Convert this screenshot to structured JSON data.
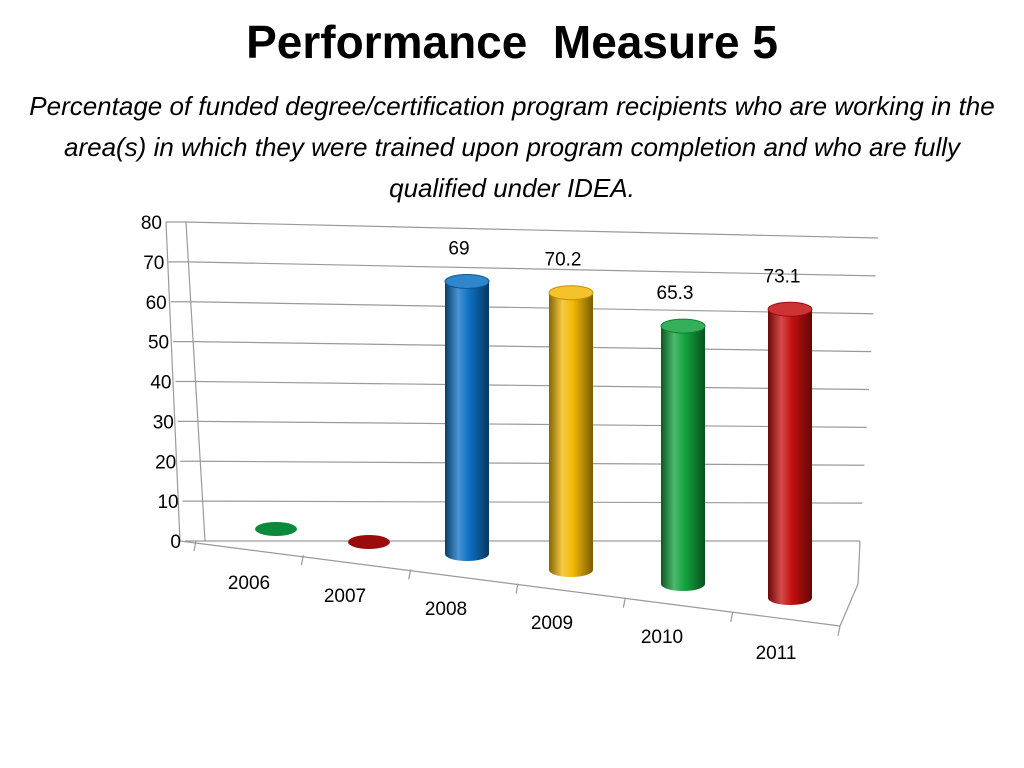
{
  "title": "Performance  Measure 5",
  "subtitle": "Percentage of funded degree/certification program recipients who are working in the area(s) in which they were trained upon program completion and who are fully qualified under IDEA.",
  "chart_data": {
    "type": "bar",
    "style": "3d-cylinder",
    "categories": [
      "2006",
      "2007",
      "2008",
      "2009",
      "2010",
      "2011"
    ],
    "values": [
      0,
      0,
      69,
      70.2,
      65.3,
      73.1
    ],
    "data_labels": [
      "",
      "",
      "69",
      "70.2",
      "65.3",
      "73.1"
    ],
    "colors": [
      "#0a8a3a",
      "#9a0c0c",
      "#0d6fc2",
      "#f2b705",
      "#12a13d",
      "#c40f0f"
    ],
    "y_ticks": [
      "0",
      "10",
      "20",
      "30",
      "40",
      "50",
      "60",
      "70",
      "80"
    ],
    "ylim": [
      0,
      80
    ],
    "grid": true,
    "legend": "none"
  }
}
